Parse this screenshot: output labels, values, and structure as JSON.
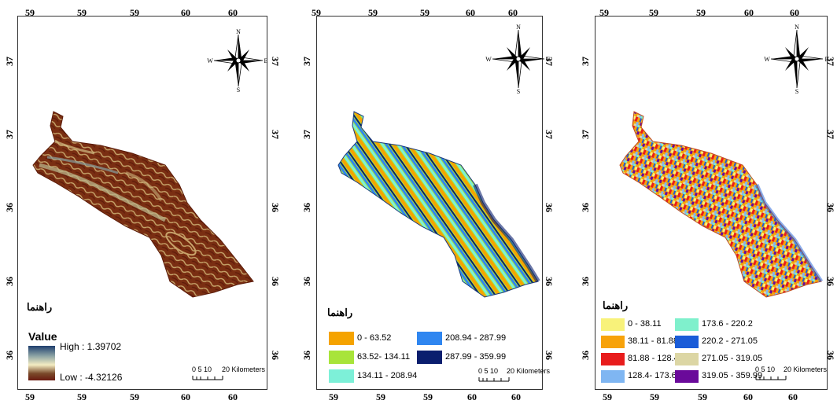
{
  "panels": [
    {
      "top_ticks": [
        "59",
        "59",
        "59",
        "60",
        "60"
      ],
      "bottom_ticks": [
        "59",
        "59",
        "59",
        "60",
        "60"
      ],
      "left_ticks": [
        "37",
        "37",
        "36",
        "36",
        "36"
      ],
      "right_ticks": [
        "37",
        "37",
        "36",
        "36",
        "36"
      ],
      "compass": {
        "n": "N",
        "s": "S",
        "e": "E",
        "w": "W"
      },
      "legend_title": "راهنما",
      "value_title": "Value",
      "high_label": "High : 1.39702",
      "low_label": "Low : -4.32126",
      "scale": {
        "ticks": "0  5 10",
        "label": "20 Kilometers"
      },
      "ramp_colors": [
        "#f3ecc2",
        "#8fa6a6",
        "#1f3f6e",
        "#7a4a2a",
        "#6a1a10"
      ]
    },
    {
      "top_ticks": [
        "59",
        "59",
        "59",
        "60",
        "60"
      ],
      "bottom_ticks": [
        "59",
        "59",
        "59",
        "60",
        "60"
      ],
      "left_ticks": [
        "37",
        "37",
        "36",
        "36",
        "36"
      ],
      "right_ticks": [
        "37",
        "37",
        "36",
        "36",
        "36"
      ],
      "compass": {
        "n": "N",
        "s": "S",
        "e": "E",
        "w": "W"
      },
      "legend_title": "راهنما",
      "classes": [
        {
          "label": "0 - 63.52",
          "color": "#f5a300"
        },
        {
          "label": "63.52- 134.11",
          "color": "#a8e43a"
        },
        {
          "label": "134.11 - 208.94",
          "color": "#7df0d8"
        },
        {
          "label": "208.94 - 287.99",
          "color": "#2f86f0"
        },
        {
          "label": "287.99 - 359.99",
          "color": "#0a1e6e"
        }
      ],
      "scale": {
        "ticks": "0  5 10",
        "label": "20 Kilometers"
      }
    },
    {
      "top_ticks": [
        "59",
        "59",
        "59",
        "60",
        "60"
      ],
      "bottom_ticks": [
        "59",
        "59",
        "59",
        "60",
        "60"
      ],
      "left_ticks": [
        "37",
        "37",
        "36",
        "36",
        "36"
      ],
      "right_ticks": [
        "37",
        "37",
        "36",
        "36",
        "36"
      ],
      "compass": {
        "n": "N",
        "s": "S",
        "e": "E",
        "w": "W"
      },
      "legend_title": "راهنما",
      "classes": [
        {
          "label": "0 - 38.11",
          "color": "#f8f27a"
        },
        {
          "label": "38.11 - 81.88",
          "color": "#f7a20a"
        },
        {
          "label": "81.88 - 128.4",
          "color": "#e81c1c"
        },
        {
          "label": "128.4- 173.6",
          "color": "#7fb6f2"
        },
        {
          "label": "173.6 - 220.2",
          "color": "#7ff0cc"
        },
        {
          "label": "220.2 - 271.05",
          "color": "#1a5cd8"
        },
        {
          "label": "271.05 - 319.05",
          "color": "#dcd6a4"
        },
        {
          "label": "319.05 - 359.99",
          "color": "#6a0a9a"
        }
      ],
      "scale": {
        "ticks": "0  5 10",
        "label": "20 Kilometers"
      }
    }
  ]
}
